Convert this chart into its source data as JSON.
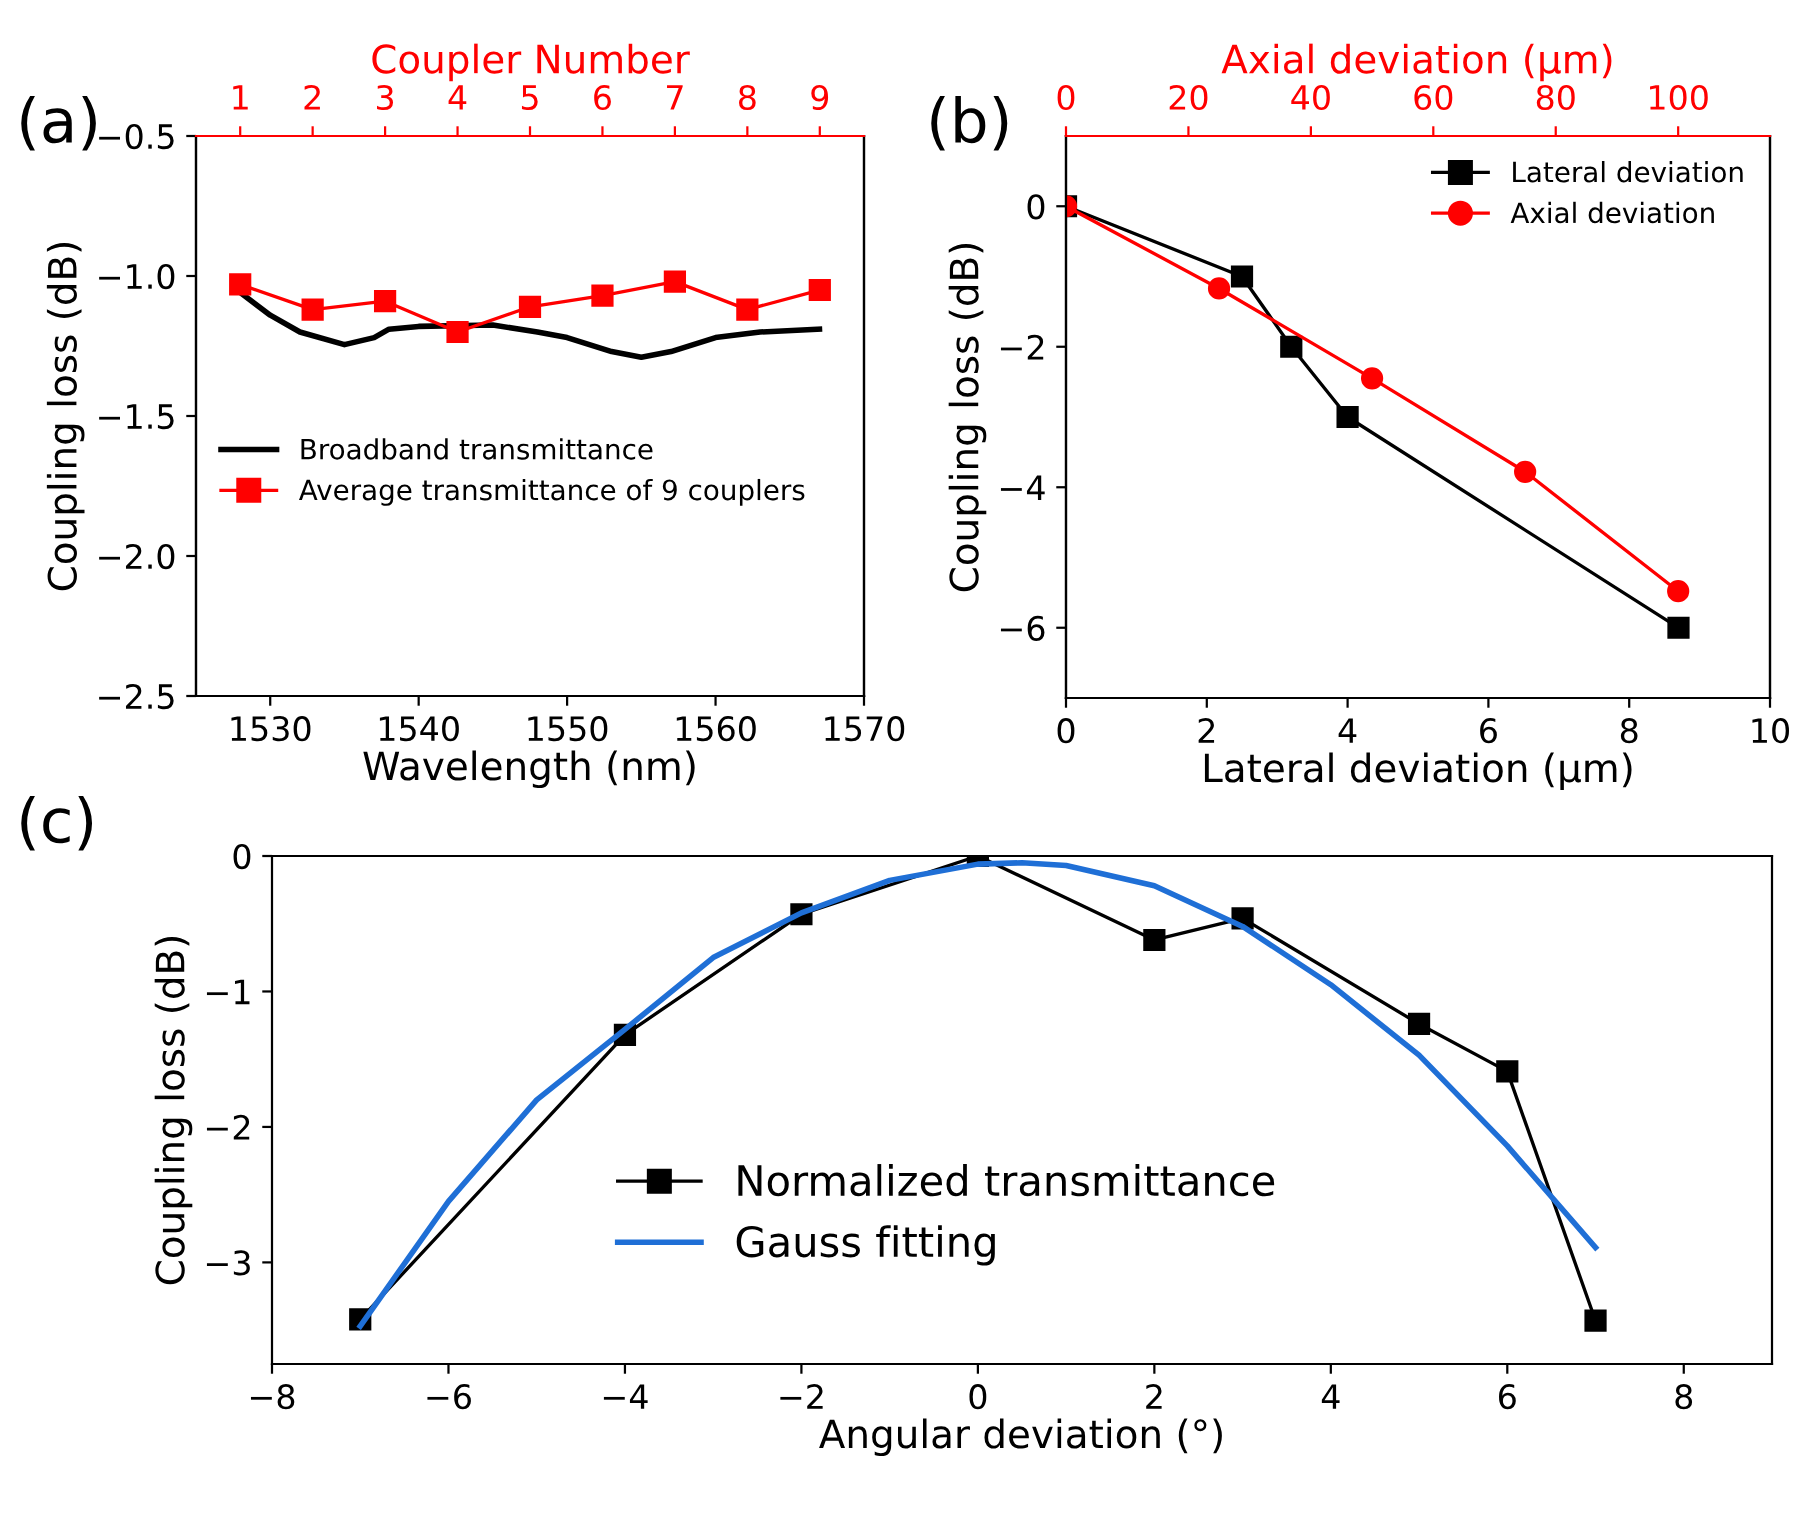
{
  "chart_data": [
    {
      "type": "line",
      "xlabel": "Wavelength (nm)",
      "ylabel": "Coupling loss (dB)",
      "x2label": "Coupler Number",
      "annotations": [
        "(a)"
      ],
      "xlim": [
        1525,
        1570
      ],
      "xticks": [
        1530,
        1540,
        1550,
        1560,
        1570
      ],
      "x2lim": [
        0.39,
        9.61
      ],
      "x2ticks": [
        1,
        2,
        3,
        4,
        5,
        6,
        7,
        8,
        9
      ],
      "ylim": [
        -2.5,
        -0.5
      ],
      "yticks": [
        {
          "value": -2.5,
          "label": "−2.5"
        },
        {
          "value": -2.0,
          "label": "−2.0"
        },
        {
          "value": -1.5,
          "label": "−1.5"
        },
        {
          "value": -1.0,
          "label": "−1.0"
        },
        {
          "value": -0.5,
          "label": "−0.5"
        }
      ],
      "legend": "center left",
      "grid": false,
      "series": [
        {
          "name": "Broadband transmittance",
          "color": "#000000",
          "marker": "none",
          "x": [
            1528,
            1530,
            1532,
            1535,
            1537,
            1538,
            1540,
            1545,
            1548,
            1550,
            1553,
            1555,
            1557,
            1560,
            1563,
            1567
          ],
          "values": [
            -1.06,
            -1.14,
            -1.2,
            -1.245,
            -1.22,
            -1.19,
            -1.18,
            -1.175,
            -1.2,
            -1.22,
            -1.27,
            -1.29,
            -1.27,
            -1.22,
            -1.2,
            -1.19
          ]
        },
        {
          "name": "Average transmittance of 9 couplers",
          "color": "#ff0000",
          "marker": "square",
          "axis": "x2",
          "x": [
            1,
            2,
            3,
            4,
            5,
            6,
            7,
            8,
            9
          ],
          "values": [
            -1.03,
            -1.12,
            -1.09,
            -1.2,
            -1.11,
            -1.07,
            -1.02,
            -1.12,
            -1.05
          ]
        }
      ]
    },
    {
      "type": "line",
      "xlabel": "Lateral deviation (μm)",
      "ylabel": "Coupling loss (dB)",
      "x2label": "Axial deviation (μm)",
      "annotations": [
        "(b)"
      ],
      "xlim": [
        0,
        10
      ],
      "xticks": [
        0,
        2,
        4,
        6,
        8,
        10
      ],
      "x2lim": [
        0,
        115
      ],
      "x2ticks": [
        0,
        20,
        40,
        60,
        80,
        100
      ],
      "ylim": [
        -7,
        1
      ],
      "yticks": [
        {
          "value": -6,
          "label": "−6"
        },
        {
          "value": -4,
          "label": "−4"
        },
        {
          "value": -2,
          "label": "−2"
        },
        0
      ],
      "legend": "top right",
      "grid": false,
      "series": [
        {
          "name": "Lateral deviation",
          "color": "#000000",
          "marker": "square",
          "x": [
            0,
            2.5,
            3.2,
            4,
            8.7
          ],
          "values": [
            0,
            -1,
            -2,
            -3,
            -6
          ]
        },
        {
          "name": "Axial deviation",
          "color": "#ff0000",
          "marker": "circle",
          "axis": "x2",
          "x": [
            0,
            25,
            50,
            75,
            100
          ],
          "values": [
            0,
            -1.17,
            -2.45,
            -3.78,
            -5.48
          ]
        }
      ]
    },
    {
      "type": "line",
      "xlabel": "Angular deviation (°)",
      "ylabel": "Coupling loss (dB)",
      "annotations": [
        "(c)"
      ],
      "xlim": [
        -8,
        9
      ],
      "xticks": [
        {
          "value": -8,
          "label": "−8"
        },
        {
          "value": -6,
          "label": "−6"
        },
        {
          "value": -4,
          "label": "−4"
        },
        {
          "value": -2,
          "label": "−2"
        },
        0,
        2,
        4,
        6,
        8
      ],
      "ylim": [
        -3.75,
        0
      ],
      "yticks": [
        {
          "value": -3,
          "label": "−3"
        },
        {
          "value": -2,
          "label": "−2"
        },
        {
          "value": -1,
          "label": "−1"
        },
        0
      ],
      "legend": "bottom",
      "grid": false,
      "series": [
        {
          "name": "Normalized transmittance",
          "color": "#000000",
          "marker": "square",
          "x": [
            -7,
            -4,
            -2,
            0,
            2,
            3,
            5,
            6,
            7
          ],
          "values": [
            -3.42,
            -1.32,
            -0.43,
            0.0,
            -0.62,
            -0.46,
            -1.24,
            -1.59,
            -3.43
          ]
        },
        {
          "name": "Gauss fitting",
          "color": "#1f6fd6",
          "marker": "none",
          "x": [
            -7,
            -6,
            -5,
            -4,
            -3,
            -2,
            -1,
            0,
            0.5,
            1,
            2,
            3,
            4,
            5,
            6,
            7
          ],
          "values": [
            -3.47,
            -2.55,
            -1.8,
            -1.28,
            -0.75,
            -0.42,
            -0.18,
            -0.06,
            -0.05,
            -0.07,
            -0.22,
            -0.52,
            -0.95,
            -1.47,
            -2.14,
            -2.89
          ]
        }
      ]
    }
  ]
}
